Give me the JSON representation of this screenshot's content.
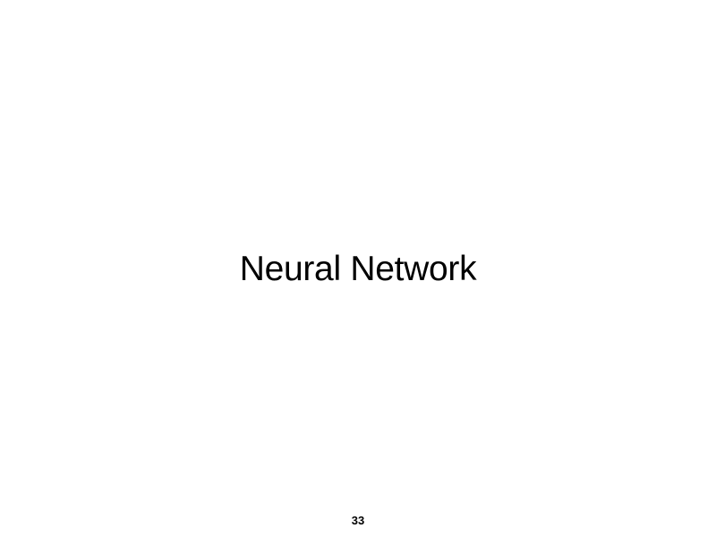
{
  "slide": {
    "title": "Neural Network",
    "page_number": "33"
  },
  "colors": {
    "background": "#ffffff",
    "text": "#000000"
  }
}
